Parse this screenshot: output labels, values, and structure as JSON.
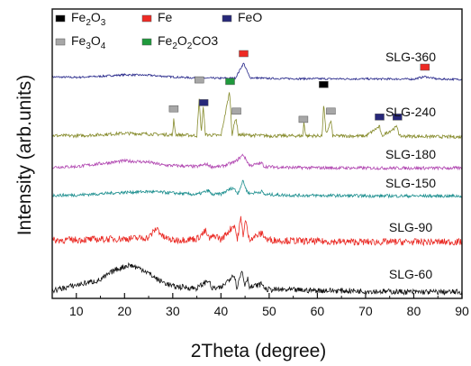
{
  "chart_data": {
    "type": "line",
    "xlabel": "2Theta (degree)",
    "ylabel": "Intensity (arb.units)",
    "xlim": [
      5,
      90
    ],
    "xticks": [
      10,
      20,
      30,
      40,
      50,
      60,
      70,
      80,
      90
    ],
    "grid": false,
    "legend": {
      "placement": "top-left",
      "entries": [
        {
          "name": "Fe",
          "sub": "2",
          "mid": "O",
          "sub2": "3",
          "tail": "",
          "color": "#000000",
          "marker": "square"
        },
        {
          "name": "Fe",
          "sub": "",
          "mid": "",
          "sub2": "",
          "tail": "",
          "color": "#ee2a24",
          "marker": "square"
        },
        {
          "name": "FeO",
          "sub": "",
          "mid": "",
          "sub2": "",
          "tail": "",
          "color": "#27287a",
          "marker": "square"
        },
        {
          "name": "Fe",
          "sub": "3",
          "mid": "O",
          "sub2": "4",
          "tail": "",
          "color": "#a7a7a7",
          "marker": "square"
        },
        {
          "name": "Fe",
          "sub": "2",
          "mid": "O",
          "sub2": "2",
          "tail": "CO3",
          "color": "#1f9a3c",
          "marker": "square"
        }
      ]
    },
    "series": [
      {
        "name": "SLG-360",
        "color": "#27288a",
        "points": [
          [
            5,
            0.22
          ],
          [
            10,
            0.18
          ],
          [
            15,
            0.28
          ],
          [
            20,
            0.42
          ],
          [
            25,
            0.38
          ],
          [
            30,
            0.22
          ],
          [
            35,
            0.12
          ],
          [
            40,
            0.1
          ],
          [
            43,
            0.12
          ],
          [
            44.7,
            1.5
          ],
          [
            46,
            0.15
          ],
          [
            50,
            0.08
          ],
          [
            60,
            0.05
          ],
          [
            70,
            0.04
          ],
          [
            80,
            0.02
          ],
          [
            82.3,
            0.25
          ],
          [
            85,
            0.02
          ],
          [
            90,
            0
          ]
        ],
        "noise": 0.09
      },
      {
        "name": "SLG-240",
        "color": "#858a2a",
        "points": [
          [
            5,
            0.12
          ],
          [
            10,
            0.1
          ],
          [
            15,
            0.2
          ],
          [
            20,
            0.32
          ],
          [
            25,
            0.26
          ],
          [
            30,
            0.18
          ],
          [
            30.2,
            1.6
          ],
          [
            30.6,
            0.2
          ],
          [
            35,
            0.12
          ],
          [
            35.5,
            3.3
          ],
          [
            35.9,
            0.3
          ],
          [
            36.3,
            2.6
          ],
          [
            36.8,
            0.2
          ],
          [
            40,
            0.12
          ],
          [
            41.8,
            3.9
          ],
          [
            42.3,
            0.2
          ],
          [
            43.1,
            1.7
          ],
          [
            43.6,
            0.2
          ],
          [
            50,
            0.1
          ],
          [
            57,
            0.1
          ],
          [
            57.2,
            1.3
          ],
          [
            57.6,
            0.1
          ],
          [
            61,
            0.1
          ],
          [
            61.3,
            2.9
          ],
          [
            61.8,
            0.2
          ],
          [
            62.8,
            1.4
          ],
          [
            63.2,
            0.1
          ],
          [
            70,
            0.08
          ],
          [
            72.9,
            0.9
          ],
          [
            73.3,
            0.08
          ],
          [
            76.6,
            0.9
          ],
          [
            77,
            0.08
          ],
          [
            90,
            0
          ]
        ],
        "noise": 0.14
      },
      {
        "name": "SLG-180",
        "color": "#b045b0",
        "points": [
          [
            5,
            0.15
          ],
          [
            10,
            0.2
          ],
          [
            15,
            0.5
          ],
          [
            20,
            0.78
          ],
          [
            25,
            0.65
          ],
          [
            28,
            0.35
          ],
          [
            35,
            0.2
          ],
          [
            37,
            0.45
          ],
          [
            38,
            0.2
          ],
          [
            40,
            0.2
          ],
          [
            43,
            0.7
          ],
          [
            44.6,
            1.4
          ],
          [
            45.2,
            0.9
          ],
          [
            46,
            0.3
          ],
          [
            48.5,
            0.55
          ],
          [
            49,
            0.2
          ],
          [
            55,
            0.1
          ],
          [
            70,
            0.05
          ],
          [
            90,
            0.05
          ]
        ],
        "noise": 0.16
      },
      {
        "name": "SLG-150",
        "color": "#1b8e8e",
        "points": [
          [
            5,
            0.12
          ],
          [
            10,
            0.15
          ],
          [
            15,
            0.28
          ],
          [
            20,
            0.42
          ],
          [
            25,
            0.5
          ],
          [
            28,
            0.42
          ],
          [
            35,
            0.2
          ],
          [
            37.5,
            0.6
          ],
          [
            38,
            0.2
          ],
          [
            40,
            0.25
          ],
          [
            42.5,
            0.9
          ],
          [
            43.5,
            0.3
          ],
          [
            44.6,
            1.6
          ],
          [
            45.3,
            0.6
          ],
          [
            46,
            0.3
          ],
          [
            48.5,
            0.5
          ],
          [
            49,
            0.2
          ],
          [
            55,
            0.12
          ],
          [
            70,
            0.06
          ],
          [
            90,
            0.05
          ]
        ],
        "noise": 0.16
      },
      {
        "name": "SLG-90",
        "color": "#ea2a24",
        "points": [
          [
            5,
            0.45
          ],
          [
            10,
            0.5
          ],
          [
            15,
            0.55
          ],
          [
            20,
            0.6
          ],
          [
            25,
            0.7
          ],
          [
            26.7,
            1.6
          ],
          [
            28,
            0.75
          ],
          [
            30,
            0.45
          ],
          [
            35,
            0.6
          ],
          [
            36.8,
            1.3
          ],
          [
            37.5,
            0.6
          ],
          [
            39,
            0.9
          ],
          [
            40,
            0.5
          ],
          [
            42.8,
            1.9
          ],
          [
            43.4,
            0.5
          ],
          [
            44.1,
            2.5
          ],
          [
            44.6,
            1.0
          ],
          [
            45.1,
            2.3
          ],
          [
            45.8,
            0.6
          ],
          [
            47,
            0.8
          ],
          [
            48.6,
            1.1
          ],
          [
            49.5,
            0.5
          ],
          [
            55,
            0.4
          ],
          [
            60,
            0.35
          ],
          [
            70,
            0.3
          ],
          [
            80,
            0.3
          ],
          [
            90,
            0.3
          ]
        ],
        "noise": 0.32
      },
      {
        "name": "SLG-60",
        "color": "#111111",
        "points": [
          [
            5,
            0.25
          ],
          [
            10,
            0.7
          ],
          [
            15,
            1.1
          ],
          [
            18,
            1.9
          ],
          [
            21,
            2.3
          ],
          [
            24,
            1.9
          ],
          [
            27,
            1.1
          ],
          [
            30,
            0.6
          ],
          [
            35,
            0.45
          ],
          [
            37.5,
            1.1
          ],
          [
            38,
            0.45
          ],
          [
            40,
            0.45
          ],
          [
            42.7,
            1.6
          ],
          [
            43.3,
            0.5
          ],
          [
            44.4,
            1.9
          ],
          [
            44.9,
            0.7
          ],
          [
            45.5,
            1.3
          ],
          [
            46,
            0.5
          ],
          [
            48.6,
            0.8
          ],
          [
            49.2,
            0.35
          ],
          [
            55,
            0.3
          ],
          [
            65,
            0.25
          ],
          [
            80,
            0.15
          ],
          [
            90,
            0.15
          ]
        ],
        "noise": 0.22
      }
    ],
    "series_labels": [
      "SLG-360",
      "SLG-240",
      "SLG-180",
      "SLG-150",
      "SLG-90",
      "SLG-60"
    ],
    "phase_markers": [
      {
        "series": "SLG-360",
        "x": 44.7,
        "phase": "Fe",
        "color": "#ee2a24",
        "tier": 0
      },
      {
        "series": "SLG-360",
        "x": 82.3,
        "phase": "Fe",
        "color": "#ee2a24",
        "tier": 0
      },
      {
        "series": "SLG-240",
        "x": 30.2,
        "phase": "Fe3O4",
        "color": "#a7a7a7",
        "tier": 0
      },
      {
        "series": "SLG-240",
        "x": 35.5,
        "phase": "Fe3O4",
        "color": "#a7a7a7",
        "tier": 1
      },
      {
        "series": "SLG-240",
        "x": 36.4,
        "phase": "FeO",
        "color": "#27287a",
        "tier": 0
      },
      {
        "series": "SLG-240",
        "x": 41.9,
        "phase": "Fe2O2CO3",
        "color": "#1f9a3c",
        "tier": 1
      },
      {
        "series": "SLG-240",
        "x": 43.2,
        "phase": "Fe3O4",
        "color": "#a7a7a7",
        "tier": 0
      },
      {
        "series": "SLG-240",
        "x": 57.1,
        "phase": "Fe3O4",
        "color": "#a7a7a7",
        "tier": 0
      },
      {
        "series": "SLG-240",
        "x": 61.3,
        "phase": "Fe2O3",
        "color": "#000000",
        "tier": 1
      },
      {
        "series": "SLG-240",
        "x": 62.8,
        "phase": "Fe3O4",
        "color": "#a7a7a7",
        "tier": 0
      },
      {
        "series": "SLG-240",
        "x": 72.9,
        "phase": "FeO",
        "color": "#27287a",
        "tier": 0
      },
      {
        "series": "SLG-240",
        "x": 76.6,
        "phase": "FeO",
        "color": "#27287a",
        "tier": 0
      }
    ]
  }
}
